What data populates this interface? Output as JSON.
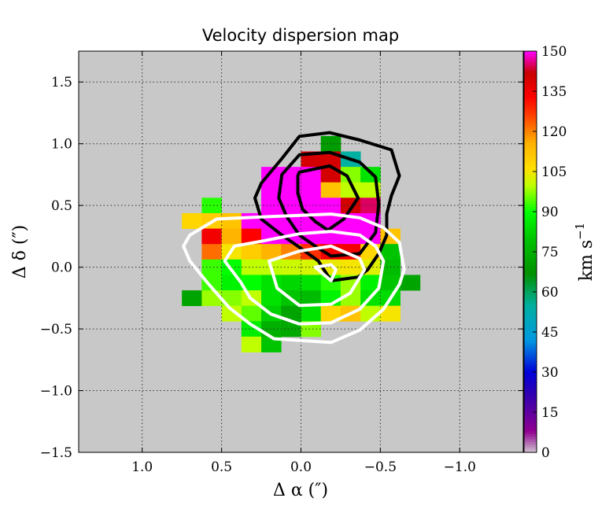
{
  "chart_data": {
    "type": "heatmap",
    "title": "Velocity dispersion map",
    "xlabel": "Δ α  (″)",
    "ylabel": "Δ δ  (″)",
    "xlim": [
      1.4,
      -1.4
    ],
    "ylim": [
      -1.5,
      1.75
    ],
    "x_inverted": true,
    "xticks": [
      1.0,
      0.5,
      0.0,
      -0.5,
      -1.0
    ],
    "xtick_labels": [
      "1.0",
      "0.5",
      "0.0",
      "−0.5",
      "−1.0"
    ],
    "yticks": [
      -1.5,
      -1.0,
      -0.5,
      0.0,
      0.5,
      1.0,
      1.5
    ],
    "ytick_labels": [
      "−1.5",
      "−1.0",
      "−0.5",
      "0.0",
      "0.5",
      "1.0",
      "1.5"
    ],
    "grid": true,
    "background_color": "#c8c8c8",
    "pixel_size": 0.125,
    "x_centers": [
      0.6875,
      0.5625,
      0.4375,
      0.3125,
      0.1875,
      0.0625,
      -0.0625,
      -0.1875,
      -0.3125,
      -0.4375,
      -0.5625,
      -0.6875
    ],
    "y_centers": [
      1.0,
      0.875,
      0.75,
      0.625,
      0.5,
      0.375,
      0.25,
      0.125,
      0.0,
      -0.125,
      -0.25,
      -0.375,
      -0.5,
      -0.625
    ],
    "values": [
      [
        null,
        null,
        null,
        null,
        null,
        null,
        null,
        70,
        null,
        null,
        null,
        null
      ],
      [
        null,
        null,
        null,
        null,
        null,
        null,
        140,
        140,
        55,
        null,
        null,
        null
      ],
      [
        null,
        null,
        null,
        null,
        150,
        150,
        150,
        140,
        97,
        85,
        null,
        null
      ],
      [
        null,
        null,
        null,
        null,
        150,
        150,
        150,
        112,
        100,
        100,
        null,
        null
      ],
      [
        null,
        92,
        null,
        null,
        150,
        150,
        150,
        150,
        140,
        145,
        null,
        null
      ],
      [
        108,
        110,
        112,
        150,
        150,
        150,
        150,
        150,
        150,
        150,
        null,
        null
      ],
      [
        null,
        135,
        115,
        133,
        150,
        150,
        150,
        150,
        150,
        150,
        112,
        null
      ],
      [
        null,
        122,
        105,
        110,
        115,
        120,
        128,
        135,
        135,
        108,
        80,
        null
      ],
      [
        null,
        93,
        90,
        100,
        100,
        101,
        102,
        104,
        105,
        103,
        78,
        null
      ],
      [
        null,
        93,
        88,
        90,
        85,
        83,
        85,
        92,
        98,
        88,
        80,
        72
      ],
      [
        72,
        98,
        97,
        100,
        85,
        80,
        78,
        88,
        98,
        85,
        84,
        null
      ],
      [
        null,
        null,
        100,
        95,
        82,
        72,
        85,
        108,
        112,
        100,
        105,
        null
      ],
      [
        null,
        null,
        null,
        87,
        75,
        73,
        97,
        null,
        null,
        null,
        null,
        null
      ],
      [
        null,
        null,
        null,
        100,
        80,
        null,
        null,
        null,
        null,
        null,
        null,
        null
      ]
    ],
    "colorbar": {
      "label": "km s",
      "label_exponent": "−1",
      "range": [
        0,
        150
      ],
      "ticks": [
        0,
        15,
        30,
        45,
        60,
        75,
        90,
        105,
        120,
        135,
        150
      ],
      "tick_labels": [
        "0",
        "15",
        "30",
        "45",
        "60",
        "75",
        "90",
        "105",
        "120",
        "135",
        "150"
      ],
      "colormap_stops": [
        [
          0,
          "#d0c4d0"
        ],
        [
          8,
          "#900090"
        ],
        [
          22,
          "#3000b0"
        ],
        [
          30,
          "#0000d8"
        ],
        [
          42,
          "#0098e0"
        ],
        [
          55,
          "#00b0a0"
        ],
        [
          67,
          "#009000"
        ],
        [
          80,
          "#00c400"
        ],
        [
          90,
          "#00ff00"
        ],
        [
          100,
          "#c0ff00"
        ],
        [
          106,
          "#ffe000"
        ],
        [
          116,
          "#ffb000"
        ],
        [
          126,
          "#ff4000"
        ],
        [
          133,
          "#ff0000"
        ],
        [
          142,
          "#c80000"
        ],
        [
          150,
          "#ff00ff"
        ]
      ]
    },
    "contours": [
      {
        "color": "#000000",
        "points": [
          [
            0.01,
            1.06
          ],
          [
            -0.18,
            1.09
          ],
          [
            -0.37,
            1.03
          ],
          [
            -0.57,
            0.95
          ],
          [
            -0.62,
            0.74
          ],
          [
            -0.57,
            0.58
          ],
          [
            -0.54,
            0.43
          ],
          [
            -0.54,
            0.26
          ],
          [
            -0.49,
            0.11
          ],
          [
            -0.42,
            -0.02
          ],
          [
            -0.36,
            -0.08
          ],
          [
            -0.19,
            -0.11
          ],
          [
            -0.11,
            0.05
          ],
          [
            0.02,
            0.17
          ],
          [
            0.12,
            0.26
          ],
          [
            0.19,
            0.33
          ],
          [
            0.25,
            0.39
          ],
          [
            0.29,
            0.56
          ],
          [
            0.25,
            0.68
          ],
          [
            0.12,
            0.88
          ]
        ]
      },
      {
        "color": "#000000",
        "points": [
          [
            0.01,
            0.91
          ],
          [
            -0.18,
            0.93
          ],
          [
            -0.37,
            0.85
          ],
          [
            -0.47,
            0.73
          ],
          [
            -0.49,
            0.51
          ],
          [
            -0.47,
            0.28
          ],
          [
            -0.37,
            0.11
          ],
          [
            -0.19,
            0.09
          ],
          [
            -0.09,
            0.17
          ],
          [
            0.01,
            0.26
          ],
          [
            0.09,
            0.41
          ],
          [
            0.14,
            0.56
          ],
          [
            0.12,
            0.75
          ]
        ]
      },
      {
        "color": "#000000",
        "points": [
          [
            0.01,
            0.77
          ],
          [
            -0.18,
            0.82
          ],
          [
            -0.29,
            0.74
          ],
          [
            -0.36,
            0.56
          ],
          [
            -0.27,
            0.39
          ],
          [
            -0.17,
            0.3
          ],
          [
            -0.09,
            0.37
          ],
          [
            -0.01,
            0.47
          ],
          [
            0.02,
            0.6
          ],
          [
            0.02,
            0.74
          ]
        ]
      },
      {
        "color": "#ffffff",
        "points": [
          [
            0.74,
            0.17
          ],
          [
            0.7,
            0.05
          ],
          [
            0.58,
            -0.14
          ],
          [
            0.45,
            -0.33
          ],
          [
            0.32,
            -0.46
          ],
          [
            0.17,
            -0.58
          ],
          [
            -0.19,
            -0.61
          ],
          [
            -0.37,
            -0.51
          ],
          [
            -0.52,
            -0.34
          ],
          [
            -0.62,
            -0.14
          ],
          [
            -0.65,
            -0.02
          ],
          [
            -0.62,
            0.2
          ],
          [
            -0.52,
            0.32
          ],
          [
            -0.37,
            0.4
          ],
          [
            -0.19,
            0.43
          ],
          [
            0.19,
            0.41
          ],
          [
            0.53,
            0.39
          ],
          [
            0.7,
            0.26
          ]
        ]
      },
      {
        "color": "#ffffff",
        "points": [
          [
            0.48,
            0.05
          ],
          [
            0.38,
            -0.12
          ],
          [
            0.32,
            -0.25
          ],
          [
            0.19,
            -0.38
          ],
          [
            0.01,
            -0.46
          ],
          [
            -0.19,
            -0.45
          ],
          [
            -0.37,
            -0.34
          ],
          [
            -0.49,
            -0.17
          ],
          [
            -0.52,
            0.05
          ],
          [
            -0.47,
            0.17
          ],
          [
            -0.37,
            0.26
          ],
          [
            -0.19,
            0.29
          ],
          [
            0.01,
            0.27
          ],
          [
            0.25,
            0.21
          ],
          [
            0.42,
            0.17
          ]
        ]
      },
      {
        "color": "#ffffff",
        "points": [
          [
            0.2,
            0.05
          ],
          [
            0.15,
            -0.17
          ],
          [
            0.01,
            -0.31
          ],
          [
            -0.19,
            -0.3
          ],
          [
            -0.31,
            -0.21
          ],
          [
            -0.4,
            -0.02
          ],
          [
            -0.37,
            0.07
          ],
          [
            -0.19,
            0.17
          ],
          [
            0.01,
            0.13
          ]
        ]
      },
      {
        "color": "#ffffff",
        "points": [
          [
            -0.09,
            0.0
          ],
          [
            -0.19,
            0.02
          ],
          [
            -0.22,
            -0.02
          ],
          [
            -0.19,
            -0.11
          ]
        ]
      }
    ]
  }
}
